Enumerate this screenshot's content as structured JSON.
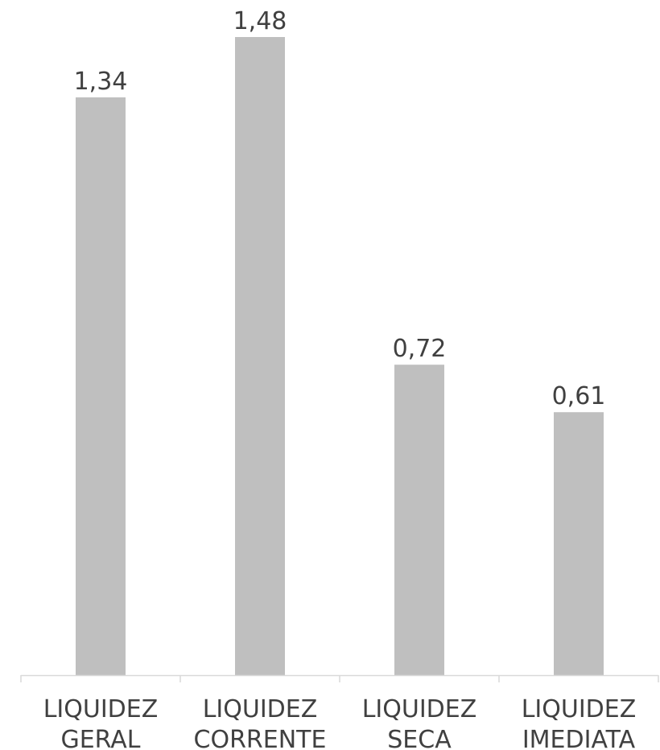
{
  "chart_data": {
    "type": "bar",
    "categories": [
      [
        "LIQUIDEZ",
        "GERAL"
      ],
      [
        "LIQUIDEZ",
        "CORRENTE"
      ],
      [
        "LIQUIDEZ",
        "SECA"
      ],
      [
        "LIQUIDEZ",
        "IMEDIATA"
      ]
    ],
    "values": [
      1.34,
      1.48,
      0.72,
      0.61
    ],
    "value_labels": [
      "1,34",
      "1,48",
      "0,72",
      "0,61"
    ],
    "title": "",
    "xlabel": "",
    "ylabel": "",
    "ylim": [
      0,
      1.6
    ],
    "grid": false,
    "legend": "none",
    "bar_color": "#bfbfbf",
    "axis_color": "#d9d9d9",
    "text_color": "#404040"
  }
}
